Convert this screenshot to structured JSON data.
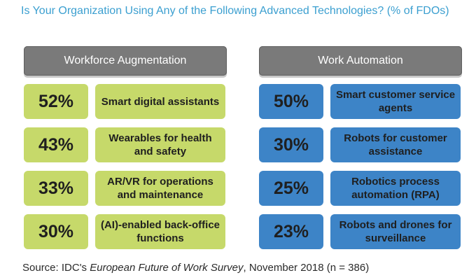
{
  "title": "Is Your Organization Using Any of the Following Advanced Technologies? (% of FDOs)",
  "colors": {
    "title": "#3b9fd0",
    "header_bg": "#7a7a7a",
    "left_tiles": "#c6d96a",
    "right_tiles": "#3d84c7"
  },
  "chart_data": {
    "type": "table",
    "title": "Is Your Organization Using Any of the Following Advanced Technologies? (% of FDOs)",
    "groups": [
      {
        "name": "Workforce Augmentation",
        "items": [
          {
            "value": "52%",
            "label": "Smart digital assistants"
          },
          {
            "value": "43%",
            "label": "Wearables for health and safety"
          },
          {
            "value": "33%",
            "label": "AR/VR for operations and maintenance"
          },
          {
            "value": "30%",
            "label": "(AI)-enabled back-office functions"
          }
        ]
      },
      {
        "name": "Work Automation",
        "items": [
          {
            "value": "50%",
            "label": "Smart customer service agents"
          },
          {
            "value": "30%",
            "label": "Robots for customer assistance"
          },
          {
            "value": "25%",
            "label": "Robotics process automation (RPA)"
          },
          {
            "value": "23%",
            "label": "Robots and drones for surveillance"
          }
        ]
      }
    ]
  },
  "source": {
    "prefix": "Source: IDC's ",
    "italic": "European Future of Work Survey",
    "suffix": ", November 2018 (n = 386)"
  }
}
